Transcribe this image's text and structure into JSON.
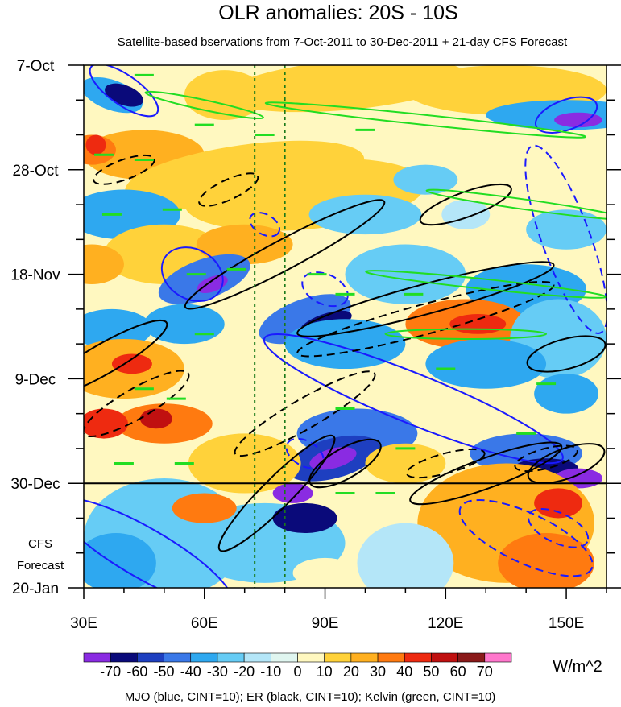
{
  "chart_data": {
    "type": "heatmap",
    "title": "OLR anomalies: 20S - 10S",
    "subtitle": "Satellite-based bservations from 7-Oct-2011 to 30-Dec-2011 + 21-day CFS Forecast",
    "x_axis": {
      "range": [
        30,
        160
      ],
      "ticks": [
        30,
        60,
        90,
        120,
        150
      ],
      "tick_labels": [
        "30E",
        "60E",
        "90E",
        "120E",
        "150E"
      ]
    },
    "y_axis": {
      "range_days": [
        0,
        105
      ],
      "ticks_days": [
        0,
        21,
        42,
        63,
        84,
        105
      ],
      "tick_labels": [
        "7-Oct",
        "28-Oct",
        "18-Nov",
        "9-Dec",
        "30-Dec",
        "20-Jan"
      ]
    },
    "observation_end_label": "30-Dec",
    "observation_end_day": 84,
    "forecast_label": [
      "CFS",
      "Forecast"
    ],
    "reference_longitudes": [
      72.5,
      80
    ],
    "colorbar": {
      "unit": "W/m^2",
      "labels": [
        "-70",
        "-60",
        "-50",
        "-40",
        "-30",
        "-20",
        "-10",
        "0",
        "10",
        "20",
        "30",
        "40",
        "50",
        "60",
        "70"
      ],
      "colors": [
        "#8a2be2",
        "#0a0a7a",
        "#1e3fc0",
        "#3a78e8",
        "#2ea8f0",
        "#66ccf5",
        "#b4e6f8",
        "#e0f6f0",
        "#fff8c0",
        "#ffd23a",
        "#ffb020",
        "#ff7a10",
        "#ee2a10",
        "#c01010",
        "#8a1a1a",
        "#ff77cc"
      ]
    },
    "contour_series": [
      {
        "name": "MJO",
        "color": "blue",
        "cint": 10
      },
      {
        "name": "ER",
        "color": "black",
        "cint": 10
      },
      {
        "name": "Kelvin",
        "color": "green",
        "cint": 10
      }
    ],
    "footer": "MJO (blue, CINT=10); ER (black, CINT=10); Kelvin (green, CINT=10)"
  }
}
